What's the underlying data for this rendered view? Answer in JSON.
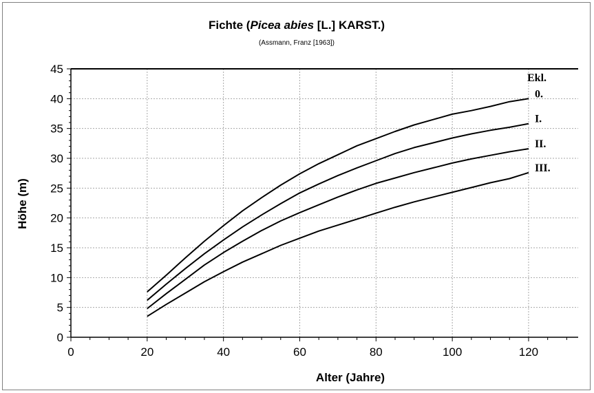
{
  "chart_data": {
    "type": "line",
    "title_prefix": "Fichte (",
    "title_italic": "Picea abies",
    "title_suffix": " [L.] KARST.)",
    "subtitle": "(Assmann, Franz [1963])",
    "xlabel": "Alter (Jahre)",
    "ylabel": "Höhe (m)",
    "xlim": [
      0,
      133
    ],
    "ylim": [
      0,
      45
    ],
    "xticks": [
      0,
      20,
      40,
      60,
      80,
      100,
      120
    ],
    "yticks": [
      0,
      5,
      10,
      15,
      20,
      25,
      30,
      35,
      40,
      45
    ],
    "grid": true,
    "legend_title": "Ekl.",
    "x": [
      20,
      25,
      30,
      35,
      40,
      45,
      50,
      55,
      60,
      65,
      70,
      75,
      80,
      85,
      90,
      95,
      100,
      105,
      110,
      115,
      120
    ],
    "series": [
      {
        "name": "0.",
        "values": [
          7.6,
          10.4,
          13.3,
          16.1,
          18.7,
          21.2,
          23.4,
          25.5,
          27.4,
          29.1,
          30.6,
          32.1,
          33.3,
          34.5,
          35.6,
          36.5,
          37.4,
          38.0,
          38.7,
          39.5,
          40.0
        ]
      },
      {
        "name": "I.",
        "values": [
          6.2,
          8.9,
          11.5,
          14.0,
          16.3,
          18.5,
          20.5,
          22.4,
          24.2,
          25.7,
          27.1,
          28.4,
          29.6,
          30.8,
          31.8,
          32.6,
          33.4,
          34.1,
          34.7,
          35.2,
          35.8
        ]
      },
      {
        "name": "II.",
        "values": [
          4.8,
          7.3,
          9.7,
          12.1,
          14.2,
          16.1,
          17.9,
          19.5,
          20.9,
          22.2,
          23.5,
          24.7,
          25.8,
          26.7,
          27.6,
          28.4,
          29.2,
          29.9,
          30.5,
          31.1,
          31.6
        ]
      },
      {
        "name": "III.",
        "values": [
          3.5,
          5.5,
          7.4,
          9.3,
          11.0,
          12.6,
          14.0,
          15.4,
          16.6,
          17.8,
          18.8,
          19.8,
          20.8,
          21.8,
          22.7,
          23.5,
          24.3,
          25.1,
          25.9,
          26.6,
          27.6
        ]
      }
    ]
  }
}
